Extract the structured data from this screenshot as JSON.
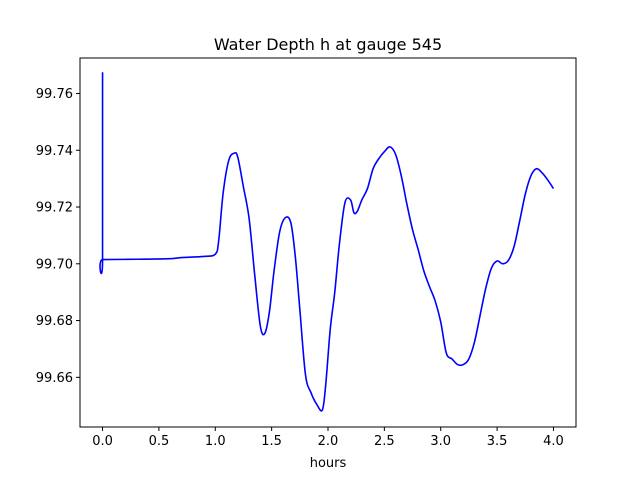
{
  "chart_data": {
    "type": "line",
    "title": "Water Depth h at gauge 545",
    "xlabel": "hours",
    "ylabel": "",
    "xlim": [
      -0.2,
      4.2
    ],
    "ylim": [
      99.6425,
      99.7725
    ],
    "xticks": [
      0.0,
      0.5,
      1.0,
      1.5,
      2.0,
      2.5,
      3.0,
      3.5,
      4.0
    ],
    "xtick_labels": [
      "0.0",
      "0.5",
      "1.0",
      "1.5",
      "2.0",
      "2.5",
      "3.0",
      "3.5",
      "4.0"
    ],
    "yticks": [
      99.66,
      99.68,
      99.7,
      99.72,
      99.74,
      99.76
    ],
    "ytick_labels": [
      "99.66",
      "99.68",
      "99.70",
      "99.72",
      "99.74",
      "99.76"
    ],
    "grid": false,
    "series": [
      {
        "color": "#0000ff",
        "x": [
          0.0,
          0.0,
          0.0,
          0.3,
          0.6,
          0.7,
          0.9,
          1.0,
          1.03,
          1.07,
          1.12,
          1.17,
          1.2,
          1.25,
          1.3,
          1.35,
          1.4,
          1.44,
          1.48,
          1.52,
          1.57,
          1.62,
          1.67,
          1.71,
          1.75,
          1.8,
          1.85,
          1.9,
          1.95,
          1.98,
          2.02,
          2.06,
          2.1,
          2.15,
          2.2,
          2.23,
          2.26,
          2.3,
          2.35,
          2.4,
          2.45,
          2.5,
          2.55,
          2.6,
          2.65,
          2.7,
          2.75,
          2.8,
          2.85,
          2.9,
          2.95,
          3.0,
          3.05,
          3.1,
          3.15,
          3.2,
          3.25,
          3.3,
          3.35,
          3.4,
          3.45,
          3.5,
          3.55,
          3.6,
          3.65,
          3.7,
          3.75,
          3.8,
          3.85,
          3.9,
          3.95,
          4.0
        ],
        "y": [
          99.7675,
          99.7015,
          99.7015,
          99.7016,
          99.7018,
          99.7022,
          99.7026,
          99.7034,
          99.708,
          99.725,
          99.7365,
          99.739,
          99.7375,
          99.727,
          99.716,
          99.696,
          99.678,
          99.6755,
          99.683,
          99.697,
          99.711,
          99.7162,
          99.7145,
          99.7025,
          99.684,
          99.661,
          99.6545,
          99.6505,
          99.6485,
          99.6575,
          99.677,
          99.69,
          99.7065,
          99.7215,
          99.7225,
          99.718,
          99.7185,
          99.7225,
          99.7265,
          99.7335,
          99.737,
          99.7395,
          99.7412,
          99.7385,
          99.731,
          99.721,
          99.712,
          99.705,
          99.6975,
          99.692,
          99.687,
          99.6795,
          99.6685,
          99.6665,
          99.6645,
          99.6645,
          99.6665,
          99.6725,
          99.682,
          99.6915,
          99.6985,
          99.701,
          99.7,
          99.7012,
          99.706,
          99.715,
          99.7245,
          99.731,
          99.7335,
          99.732,
          99.7295,
          99.7265
        ]
      }
    ]
  }
}
